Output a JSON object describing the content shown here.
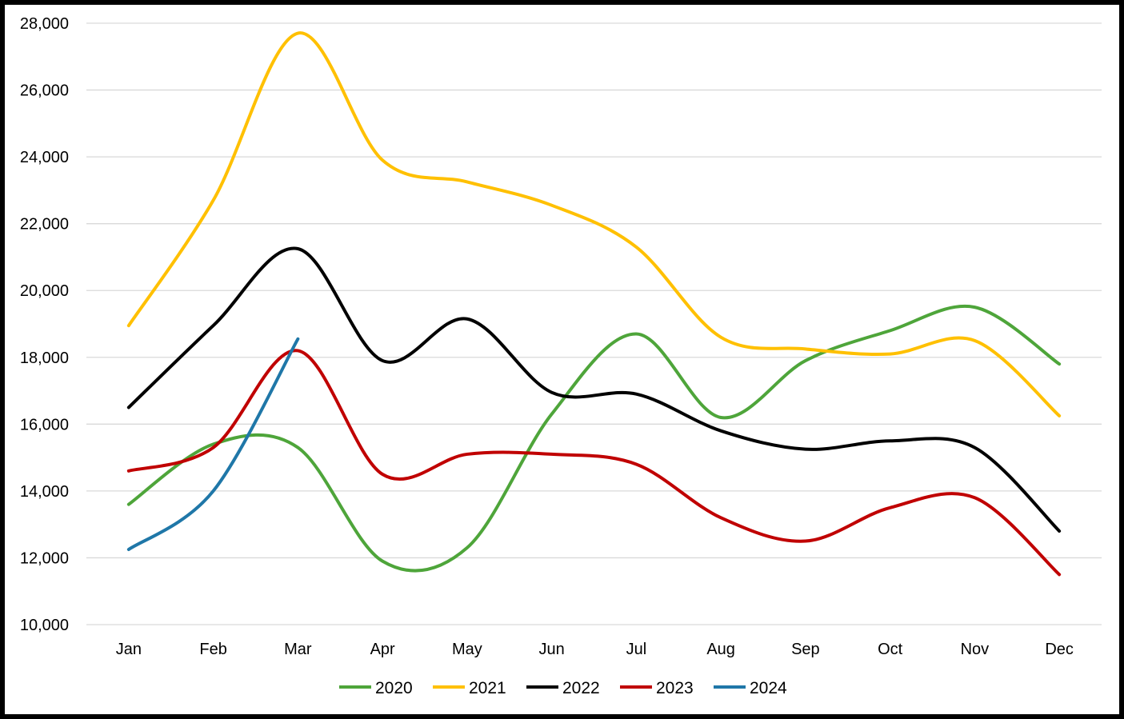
{
  "chart_data": {
    "type": "line",
    "title": "",
    "xlabel": "",
    "ylabel": "",
    "categories": [
      "Jan",
      "Feb",
      "Mar",
      "Apr",
      "May",
      "Jun",
      "Jul",
      "Aug",
      "Sep",
      "Oct",
      "Nov",
      "Dec"
    ],
    "ylim": [
      10000,
      28000
    ],
    "yticks": [
      10000,
      12000,
      14000,
      16000,
      18000,
      20000,
      22000,
      24000,
      26000,
      28000
    ],
    "ytick_labels": [
      "10,000",
      "12,000",
      "14,000",
      "16,000",
      "18,000",
      "20,000",
      "22,000",
      "24,000",
      "26,000",
      "28,000"
    ],
    "grid": "horizontal",
    "legend_position": "bottom",
    "smooth": true,
    "series": [
      {
        "name": "2020",
        "color": "#4ea53a",
        "values": [
          13600,
          15400,
          15300,
          11900,
          12300,
          16300,
          18700,
          16200,
          17900,
          18800,
          19500,
          17800
        ]
      },
      {
        "name": "2021",
        "color": "#ffc000",
        "values": [
          18950,
          22700,
          27700,
          23900,
          23250,
          22550,
          21300,
          18600,
          18250,
          18100,
          18500,
          16250
        ]
      },
      {
        "name": "2022",
        "color": "#000000",
        "values": [
          16500,
          18950,
          21250,
          17900,
          19150,
          16950,
          16900,
          15800,
          15250,
          15500,
          15300,
          12800
        ]
      },
      {
        "name": "2023",
        "color": "#c00000",
        "values": [
          14600,
          15300,
          18200,
          14500,
          15100,
          15100,
          14800,
          13200,
          12500,
          13500,
          13800,
          11500
        ]
      },
      {
        "name": "2024",
        "color": "#1f77a8",
        "values": [
          12250,
          14000,
          18550,
          null,
          null,
          null,
          null,
          null,
          null,
          null,
          null,
          null
        ]
      }
    ]
  }
}
